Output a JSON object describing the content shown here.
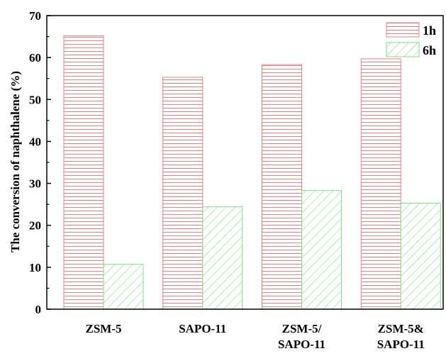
{
  "chart_data": {
    "type": "bar",
    "title": "",
    "xlabel": "",
    "ylabel": "The conversion of naphthalene (%)",
    "ylim": [
      0,
      70
    ],
    "yticks": [
      0,
      10,
      20,
      30,
      40,
      50,
      60,
      70
    ],
    "categories": [
      [
        "ZSM-5"
      ],
      [
        "SAPO-11"
      ],
      [
        "ZSM-5/",
        "SAPO-11"
      ],
      [
        "ZSM-5&",
        "SAPO-11"
      ]
    ],
    "series": [
      {
        "name": "1h",
        "values": [
          65.2,
          55.3,
          58.3,
          59.7
        ],
        "color": "#f08080",
        "pattern": "horizontal-lines"
      },
      {
        "name": "6h",
        "values": [
          10.7,
          24.4,
          28.3,
          25.3
        ],
        "color": "#7ee07e",
        "pattern": "diagonal-lines"
      }
    ],
    "legend": "top-right",
    "grid": false
  }
}
